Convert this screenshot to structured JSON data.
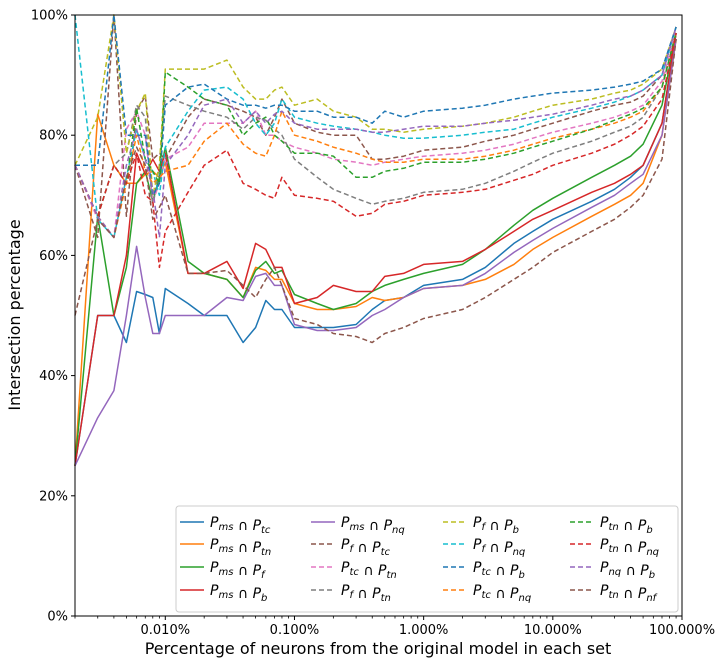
{
  "chart_data": {
    "type": "line",
    "xscale": "log",
    "xlim": [
      0.002,
      100
    ],
    "ylim": [
      0,
      100
    ],
    "xlabel": "Percentage of neurons from the original model in each set",
    "ylabel": "Intersection percentage",
    "x_ticks": [
      {
        "value": 0.01,
        "label": "0.010%"
      },
      {
        "value": 0.1,
        "label": "0.100%"
      },
      {
        "value": 1,
        "label": "1.000%"
      },
      {
        "value": 10,
        "label": "10.000%"
      },
      {
        "value": 100,
        "label": "100.000%"
      }
    ],
    "y_ticks": [
      {
        "value": 0,
        "label": "0%"
      },
      {
        "value": 20,
        "label": "20%"
      },
      {
        "value": 40,
        "label": "40%"
      },
      {
        "value": 60,
        "label": "60%"
      },
      {
        "value": 80,
        "label": "80%"
      },
      {
        "value": 100,
        "label": "100%"
      }
    ],
    "legend_position": "lower-right",
    "legend_columns": 4,
    "x": [
      0.002,
      0.003,
      0.004,
      0.005,
      0.006,
      0.007,
      0.008,
      0.009,
      0.01,
      0.015,
      0.02,
      0.03,
      0.04,
      0.05,
      0.06,
      0.07,
      0.08,
      0.1,
      0.15,
      0.2,
      0.3,
      0.4,
      0.5,
      0.7,
      1,
      2,
      3,
      5,
      7,
      10,
      20,
      30,
      40,
      50,
      70,
      90
    ],
    "series": [
      {
        "main": "P",
        "sub1": "ms",
        "sub2": "tc",
        "color": "#1f77b4",
        "dash": "solid",
        "values": [
          25,
          50,
          50,
          45.5,
          54,
          53.5,
          53,
          47,
          54.5,
          52,
          50,
          50,
          45.5,
          48,
          52.5,
          51,
          51,
          48,
          48,
          48,
          48.5,
          51,
          52.5,
          53,
          55,
          56,
          58,
          62,
          64,
          66,
          69,
          71,
          73,
          75,
          82,
          97
        ]
      },
      {
        "main": "P",
        "sub1": "ms",
        "sub2": "tn",
        "color": "#ff7f0e",
        "dash": "solid",
        "values": [
          25,
          83.5,
          75,
          72,
          72,
          73.5,
          74,
          73,
          75.5,
          57,
          57,
          56,
          53,
          58,
          57.5,
          56,
          56,
          52,
          51,
          51,
          51.5,
          53,
          52.5,
          53,
          54.5,
          55,
          56,
          58.5,
          61,
          63,
          66.5,
          68.5,
          70,
          72,
          80,
          96
        ]
      },
      {
        "main": "P",
        "sub1": "ms",
        "sub2": "f",
        "color": "#2ca02c",
        "dash": "solid",
        "values": [
          25,
          66.5,
          50,
          58,
          72,
          74,
          69,
          73,
          78,
          59,
          57,
          56,
          53,
          57.5,
          59,
          57,
          57.5,
          53.5,
          52,
          51,
          52,
          54,
          55,
          56,
          57,
          58.5,
          61,
          65,
          67.5,
          69.5,
          73,
          75,
          76.5,
          78.5,
          85,
          97
        ]
      },
      {
        "main": "P",
        "sub1": "ms",
        "sub2": "b",
        "color": "#d62728",
        "dash": "solid",
        "values": [
          25,
          50,
          50,
          60,
          77,
          73.5,
          76,
          74,
          77,
          57,
          57,
          59,
          54.5,
          62,
          61,
          58,
          58,
          52,
          53,
          55,
          54,
          54,
          56.5,
          57,
          58.5,
          59,
          61,
          64,
          66,
          67.5,
          70.5,
          72,
          73.5,
          75,
          82,
          97
        ]
      },
      {
        "main": "P",
        "sub1": "ms",
        "sub2": "nq",
        "color": "#9467bd",
        "dash": "solid",
        "values": [
          25,
          33,
          37.5,
          50,
          61.5,
          53,
          47,
          47,
          50,
          50,
          50,
          53,
          52.5,
          56.5,
          57,
          55,
          55,
          48.5,
          47.5,
          47.5,
          48,
          50,
          51,
          53,
          54.5,
          55,
          57,
          60.5,
          62.5,
          64.5,
          68,
          70,
          72,
          73.5,
          80,
          96
        ]
      },
      {
        "main": "P",
        "sub1": "f",
        "sub2": "tc",
        "color": "#8c564b",
        "dash": "dashed",
        "values": [
          75,
          63,
          100,
          66.5,
          84,
          86.5,
          76,
          77,
          76,
          83,
          86,
          85,
          84,
          83,
          80,
          83,
          86,
          82,
          80.5,
          80,
          80,
          76,
          76,
          76.5,
          77.5,
          78,
          79,
          80,
          81,
          82,
          84,
          85,
          85.5,
          86.5,
          90,
          98
        ]
      },
      {
        "main": "P",
        "sub1": "tc",
        "sub2": "tn",
        "color": "#e377c2",
        "dash": "dashed",
        "values": [
          75,
          66,
          63,
          81,
          84,
          80,
          69,
          72,
          76,
          78,
          82,
          82,
          82,
          84,
          80,
          80,
          79,
          78,
          77,
          76,
          75.5,
          75,
          75.5,
          76,
          76.5,
          77,
          77.5,
          78.5,
          79.5,
          80.5,
          82,
          83,
          84,
          85,
          89,
          97
        ]
      },
      {
        "main": "P",
        "sub1": "f",
        "sub2": "tn",
        "color": "#7f7f7f",
        "dash": "dashed",
        "values": [
          75,
          66.5,
          75,
          77,
          85,
          83,
          68,
          75,
          86.5,
          85,
          84,
          83,
          81,
          83,
          82.5,
          81,
          80,
          76,
          73,
          71,
          69.5,
          68.5,
          69,
          69.5,
          70.5,
          71,
          72,
          74,
          75.5,
          77,
          79,
          80.5,
          81.5,
          83,
          88,
          97
        ]
      },
      {
        "main": "P",
        "sub1": "f",
        "sub2": "b",
        "color": "#bcbd22",
        "dash": "dashed",
        "values": [
          75,
          83,
          100,
          77,
          84,
          87,
          70,
          75,
          91,
          91,
          91,
          92.5,
          88,
          86,
          86,
          87.5,
          88,
          85,
          86,
          84,
          83,
          81,
          81,
          80.5,
          81,
          81.5,
          82,
          83,
          84,
          85,
          86,
          87,
          87.5,
          88.5,
          91,
          98
        ]
      },
      {
        "main": "P",
        "sub1": "f",
        "sub2": "nq",
        "color": "#17becf",
        "dash": "dashed",
        "values": [
          100,
          66,
          63,
          73,
          81,
          76,
          74,
          70,
          78,
          84,
          87.5,
          88,
          86,
          82,
          80,
          82,
          86,
          83,
          82,
          81.5,
          81,
          80.5,
          80,
          79.5,
          79.5,
          80,
          80.5,
          81,
          82,
          83,
          84.5,
          85.5,
          86.5,
          87.5,
          90,
          98
        ]
      },
      {
        "main": "P",
        "sub1": "tc",
        "sub2": "b",
        "color": "#1f77b4",
        "dash": "dashed",
        "values": [
          75,
          75,
          100,
          80,
          80,
          80,
          70,
          72,
          85,
          88,
          88.5,
          86,
          85,
          85,
          84.5,
          85,
          85,
          84,
          84,
          83,
          83,
          82,
          84,
          83,
          84,
          84.5,
          85,
          86,
          86.5,
          87,
          87.5,
          88,
          88.5,
          89,
          91,
          98
        ]
      },
      {
        "main": "P",
        "sub1": "tc",
        "sub2": "nq",
        "color": "#ff7f0e",
        "dash": "dashed",
        "values": [
          75,
          66.5,
          63,
          72,
          80,
          74,
          72,
          73,
          74,
          75,
          79,
          82,
          78.5,
          77,
          76.5,
          80,
          84,
          80,
          79,
          78,
          77,
          76,
          75.5,
          75.5,
          76,
          76,
          76.5,
          77.5,
          78.5,
          79.5,
          81,
          82,
          83,
          84,
          88,
          97
        ]
      },
      {
        "main": "P",
        "sub1": "tn",
        "sub2": "b",
        "color": "#2ca02c",
        "dash": "dashed",
        "values": [
          75,
          66.5,
          75,
          72,
          84.5,
          76,
          74,
          72,
          90.5,
          88,
          86,
          85,
          80,
          82,
          83,
          80,
          79,
          77,
          77,
          76.5,
          73,
          73,
          74,
          74.5,
          75.5,
          75.5,
          76,
          77,
          78,
          79,
          81,
          82.5,
          83.5,
          84.5,
          88,
          97
        ]
      },
      {
        "main": "P",
        "sub1": "tn",
        "sub2": "nq",
        "color": "#d62728",
        "dash": "dashed",
        "values": [
          75,
          66.5,
          75,
          72,
          77,
          70,
          69,
          58,
          64,
          70.5,
          75,
          77.5,
          72,
          71,
          70,
          69.5,
          73,
          70,
          69.5,
          69,
          66.5,
          67,
          68.5,
          69,
          70,
          70.5,
          71,
          72.5,
          73.5,
          75,
          77,
          78.5,
          80,
          81.5,
          86,
          97
        ]
      },
      {
        "main": "P",
        "sub1": "nq",
        "sub2": "b",
        "color": "#9467bd",
        "dash": "dashed",
        "values": [
          75,
          66.5,
          63,
          75,
          81,
          76,
          71,
          63,
          75,
          80,
          85,
          86,
          82,
          84,
          82,
          83.5,
          84,
          82,
          81,
          81,
          81,
          80.5,
          80.5,
          81,
          81.5,
          81.5,
          82,
          82.5,
          83,
          83.5,
          85,
          86,
          86.5,
          87.5,
          90,
          98
        ]
      },
      {
        "main": "P",
        "sub1": "tn",
        "sub2": "nf",
        "color": "#8c564b",
        "dash": "dashed",
        "values": [
          50,
          66,
          63,
          73,
          78,
          75,
          66,
          68,
          70,
          57,
          57,
          57.5,
          55,
          53,
          56,
          58,
          55,
          49.5,
          48.5,
          47,
          46.5,
          45.5,
          47,
          48,
          49.5,
          51,
          53,
          56,
          58,
          60.5,
          64,
          66,
          68,
          70,
          76,
          96
        ]
      }
    ]
  }
}
